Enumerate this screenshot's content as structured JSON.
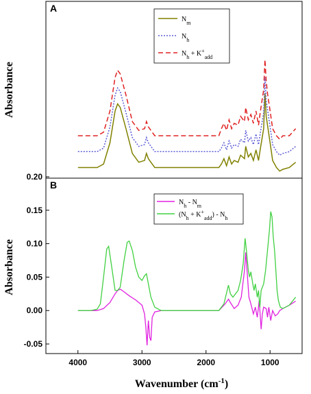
{
  "chart_data": [
    {
      "type": "line",
      "panel": "A",
      "ylabel": "Absorbance",
      "xlim": [
        4500,
        500
      ],
      "ylim": [
        0,
        1
      ],
      "x_ticks_shown": false,
      "y_ticks_shown": false,
      "legend_position": "top-center",
      "series": [
        {
          "name": "N_m",
          "label_main": "N",
          "label_sub": "m",
          "label_sup": "",
          "label_sub2": "",
          "color": "#808000",
          "dash": "solid",
          "points": [
            [
              4000,
              0.06
            ],
            [
              3700,
              0.06
            ],
            [
              3600,
              0.08
            ],
            [
              3500,
              0.2
            ],
            [
              3420,
              0.38
            ],
            [
              3380,
              0.42
            ],
            [
              3340,
              0.4
            ],
            [
              3250,
              0.28
            ],
            [
              3150,
              0.14
            ],
            [
              3050,
              0.09
            ],
            [
              2960,
              0.1
            ],
            [
              2930,
              0.14
            ],
            [
              2900,
              0.11
            ],
            [
              2860,
              0.09
            ],
            [
              2800,
              0.06
            ],
            [
              2600,
              0.06
            ],
            [
              1800,
              0.06
            ],
            [
              1760,
              0.08
            ],
            [
              1720,
              0.11
            ],
            [
              1680,
              0.07
            ],
            [
              1640,
              0.12
            ],
            [
              1600,
              0.08
            ],
            [
              1560,
              0.1
            ],
            [
              1500,
              0.09
            ],
            [
              1460,
              0.13
            ],
            [
              1400,
              0.11
            ],
            [
              1380,
              0.18
            ],
            [
              1340,
              0.12
            ],
            [
              1300,
              0.14
            ],
            [
              1260,
              0.1
            ],
            [
              1220,
              0.16
            ],
            [
              1180,
              0.1
            ],
            [
              1150,
              0.17
            ],
            [
              1100,
              0.28
            ],
            [
              1080,
              0.48
            ],
            [
              1060,
              0.35
            ],
            [
              1040,
              0.3
            ],
            [
              1000,
              0.2
            ],
            [
              960,
              0.1
            ],
            [
              900,
              0.06
            ],
            [
              850,
              0.04
            ],
            [
              800,
              0.05
            ],
            [
              700,
              0.06
            ],
            [
              600,
              0.09
            ]
          ]
        },
        {
          "name": "N_h",
          "label_main": "N",
          "label_sub": "h",
          "label_sup": "",
          "label_sub2": "",
          "color": "#5c5cd6",
          "dash": "2,2",
          "points": [
            [
              4000,
              0.15
            ],
            [
              3700,
              0.15
            ],
            [
              3600,
              0.17
            ],
            [
              3500,
              0.29
            ],
            [
              3420,
              0.47
            ],
            [
              3380,
              0.51
            ],
            [
              3340,
              0.49
            ],
            [
              3250,
              0.37
            ],
            [
              3150,
              0.23
            ],
            [
              3050,
              0.18
            ],
            [
              2960,
              0.19
            ],
            [
              2930,
              0.23
            ],
            [
              2900,
              0.2
            ],
            [
              2860,
              0.18
            ],
            [
              2800,
              0.15
            ],
            [
              2600,
              0.15
            ],
            [
              1800,
              0.15
            ],
            [
              1760,
              0.17
            ],
            [
              1720,
              0.2
            ],
            [
              1680,
              0.16
            ],
            [
              1640,
              0.21
            ],
            [
              1600,
              0.17
            ],
            [
              1560,
              0.19
            ],
            [
              1500,
              0.18
            ],
            [
              1460,
              0.22
            ],
            [
              1400,
              0.2
            ],
            [
              1380,
              0.27
            ],
            [
              1340,
              0.21
            ],
            [
              1300,
              0.23
            ],
            [
              1260,
              0.19
            ],
            [
              1220,
              0.25
            ],
            [
              1180,
              0.19
            ],
            [
              1150,
              0.26
            ],
            [
              1100,
              0.37
            ],
            [
              1080,
              0.57
            ],
            [
              1060,
              0.44
            ],
            [
              1040,
              0.39
            ],
            [
              1000,
              0.29
            ],
            [
              960,
              0.19
            ],
            [
              900,
              0.15
            ],
            [
              850,
              0.13
            ],
            [
              800,
              0.14
            ],
            [
              700,
              0.15
            ],
            [
              600,
              0.18
            ]
          ]
        },
        {
          "name": "N_h + K+_add",
          "label_main": "N",
          "label_sub": "h",
          "label_sup": "+",
          "label_sub2": "add",
          "color": "#e02020",
          "dash": "7,4",
          "points": [
            [
              4000,
              0.24
            ],
            [
              3700,
              0.24
            ],
            [
              3600,
              0.26
            ],
            [
              3500,
              0.38
            ],
            [
              3420,
              0.57
            ],
            [
              3380,
              0.61
            ],
            [
              3340,
              0.59
            ],
            [
              3250,
              0.47
            ],
            [
              3150,
              0.32
            ],
            [
              3050,
              0.27
            ],
            [
              2960,
              0.28
            ],
            [
              2930,
              0.32
            ],
            [
              2900,
              0.29
            ],
            [
              2860,
              0.27
            ],
            [
              2800,
              0.24
            ],
            [
              2600,
              0.24
            ],
            [
              1800,
              0.24
            ],
            [
              1760,
              0.28
            ],
            [
              1720,
              0.31
            ],
            [
              1680,
              0.27
            ],
            [
              1640,
              0.33
            ],
            [
              1600,
              0.28
            ],
            [
              1560,
              0.31
            ],
            [
              1500,
              0.3
            ],
            [
              1460,
              0.35
            ],
            [
              1400,
              0.32
            ],
            [
              1380,
              0.4
            ],
            [
              1340,
              0.33
            ],
            [
              1300,
              0.36
            ],
            [
              1260,
              0.31
            ],
            [
              1220,
              0.38
            ],
            [
              1180,
              0.3
            ],
            [
              1150,
              0.38
            ],
            [
              1100,
              0.5
            ],
            [
              1080,
              0.67
            ],
            [
              1060,
              0.55
            ],
            [
              1040,
              0.48
            ],
            [
              1000,
              0.38
            ],
            [
              960,
              0.28
            ],
            [
              900,
              0.24
            ],
            [
              850,
              0.22
            ],
            [
              800,
              0.24
            ],
            [
              700,
              0.24
            ],
            [
              600,
              0.28
            ]
          ]
        }
      ]
    },
    {
      "type": "line",
      "panel": "B",
      "xlabel_main": "Wavenumber (cm",
      "xlabel_sup": "-1",
      "xlabel_end": ")",
      "ylabel": "Absorbance",
      "xlim": [
        4500,
        500
      ],
      "ylim": [
        -0.05,
        0.2
      ],
      "x_ticks": [
        4000,
        3000,
        2000,
        1000
      ],
      "x_tick_labels": [
        "4000",
        "3000",
        "2000",
        "1000"
      ],
      "y_ticks": [
        -0.05,
        0.0,
        0.05,
        0.1,
        0.15,
        0.2
      ],
      "y_tick_labels": [
        "-0.05",
        "0.00",
        "0.05",
        "0.10",
        "0.15",
        "0.20"
      ],
      "legend_position": "top-center",
      "series": [
        {
          "name": "N_h - N_m",
          "color": "#e020e0",
          "dash": "solid",
          "label_parts": [
            [
              "N",
              ""
            ],
            [
              "h",
              "sub"
            ],
            [
              " - N",
              ""
            ],
            [
              "m",
              "sub"
            ]
          ],
          "points": [
            [
              4000,
              0.0
            ],
            [
              3700,
              0.0
            ],
            [
              3600,
              0.003
            ],
            [
              3500,
              0.012
            ],
            [
              3420,
              0.025
            ],
            [
              3380,
              0.03
            ],
            [
              3340,
              0.032
            ],
            [
              3280,
              0.028
            ],
            [
              3200,
              0.022
            ],
            [
              3100,
              0.016
            ],
            [
              3000,
              0.008
            ],
            [
              2960,
              -0.005
            ],
            [
              2940,
              -0.025
            ],
            [
              2920,
              -0.052
            ],
            [
              2900,
              -0.015
            ],
            [
              2880,
              -0.04
            ],
            [
              2860,
              -0.045
            ],
            [
              2840,
              -0.01
            ],
            [
              2800,
              -0.002
            ],
            [
              2700,
              0.0
            ],
            [
              1800,
              0.0
            ],
            [
              1700,
              0.01
            ],
            [
              1650,
              0.017
            ],
            [
              1620,
              0.012
            ],
            [
              1560,
              0.003
            ],
            [
              1500,
              0.008
            ],
            [
              1450,
              0.02
            ],
            [
              1400,
              0.06
            ],
            [
              1380,
              0.087
            ],
            [
              1360,
              0.06
            ],
            [
              1330,
              0.02
            ],
            [
              1300,
              0.01
            ],
            [
              1260,
              -0.005
            ],
            [
              1230,
              0.005
            ],
            [
              1200,
              -0.01
            ],
            [
              1170,
              0.015
            ],
            [
              1140,
              -0.028
            ],
            [
              1120,
              -0.005
            ],
            [
              1100,
              0.005
            ],
            [
              1060,
              0.003
            ],
            [
              1040,
              -0.01
            ],
            [
              1020,
              0.005
            ],
            [
              990,
              -0.015
            ],
            [
              960,
              0.0
            ],
            [
              920,
              -0.008
            ],
            [
              880,
              -0.005
            ],
            [
              850,
              0.0
            ],
            [
              800,
              0.003
            ],
            [
              700,
              0.008
            ],
            [
              600,
              0.014
            ]
          ]
        },
        {
          "name": "(N_h + K+_add) - N_h",
          "color": "#40d040",
          "dash": "solid",
          "label_parts": [
            [
              "(N",
              ""
            ],
            [
              "h",
              "sub"
            ],
            [
              " + K",
              ""
            ],
            [
              "+",
              "sup"
            ],
            [
              "add",
              "sub"
            ],
            [
              ") - N",
              ""
            ],
            [
              "h",
              "sub"
            ]
          ],
          "points": [
            [
              4000,
              0.0
            ],
            [
              3800,
              0.0
            ],
            [
              3700,
              0.002
            ],
            [
              3650,
              0.01
            ],
            [
              3600,
              0.05
            ],
            [
              3550,
              0.092
            ],
            [
              3520,
              0.096
            ],
            [
              3480,
              0.07
            ],
            [
              3420,
              0.03
            ],
            [
              3380,
              0.03
            ],
            [
              3340,
              0.035
            ],
            [
              3280,
              0.075
            ],
            [
              3230,
              0.102
            ],
            [
              3200,
              0.104
            ],
            [
              3150,
              0.09
            ],
            [
              3100,
              0.065
            ],
            [
              3050,
              0.05
            ],
            [
              3000,
              0.045
            ],
            [
              2960,
              0.052
            ],
            [
              2930,
              0.055
            ],
            [
              2900,
              0.04
            ],
            [
              2860,
              0.02
            ],
            [
              2800,
              0.005
            ],
            [
              2700,
              0.0
            ],
            [
              1800,
              0.0
            ],
            [
              1720,
              0.01
            ],
            [
              1670,
              0.03
            ],
            [
              1650,
              0.038
            ],
            [
              1620,
              0.025
            ],
            [
              1580,
              0.02
            ],
            [
              1540,
              0.025
            ],
            [
              1500,
              0.03
            ],
            [
              1460,
              0.045
            ],
            [
              1420,
              0.07
            ],
            [
              1390,
              0.108
            ],
            [
              1370,
              0.09
            ],
            [
              1340,
              0.06
            ],
            [
              1320,
              0.05
            ],
            [
              1300,
              0.058
            ],
            [
              1270,
              0.04
            ],
            [
              1250,
              0.03
            ],
            [
              1230,
              0.04
            ],
            [
              1200,
              0.02
            ],
            [
              1180,
              0.03
            ],
            [
              1160,
              0.005
            ],
            [
              1140,
              0.03
            ],
            [
              1100,
              0.04
            ],
            [
              1070,
              0.06
            ],
            [
              1040,
              0.09
            ],
            [
              1010,
              0.12
            ],
            [
              990,
              0.148
            ],
            [
              970,
              0.14
            ],
            [
              950,
              0.11
            ],
            [
              930,
              0.09
            ],
            [
              910,
              0.06
            ],
            [
              890,
              0.03
            ],
            [
              870,
              0.015
            ],
            [
              840,
              0.005
            ],
            [
              800,
              0.003
            ],
            [
              700,
              0.008
            ],
            [
              600,
              0.02
            ]
          ]
        }
      ]
    }
  ]
}
